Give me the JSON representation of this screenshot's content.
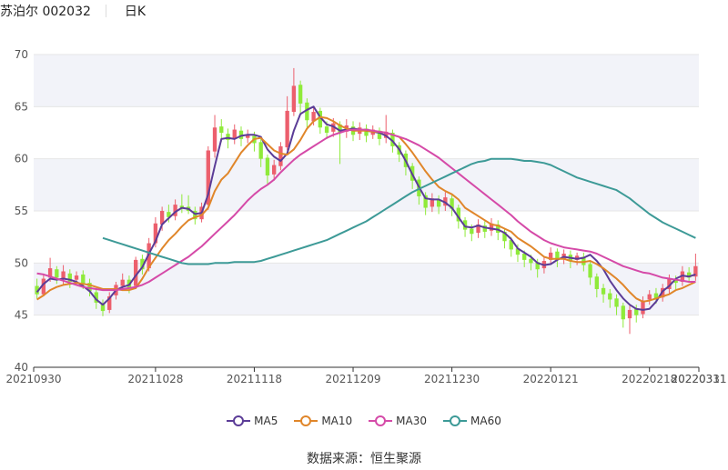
{
  "header": {
    "stock_name": "苏泊尔 002032",
    "period": "日K"
  },
  "footer": {
    "source_label": "数据来源：",
    "source_name": "恒生聚源"
  },
  "colors": {
    "up": "#ec5f6d",
    "down": "#8fea3a",
    "ma5": "#5b3c97",
    "ma10": "#e0862a",
    "ma30": "#d54aa8",
    "ma60": "#3d9a97",
    "band": "#f2f3f9",
    "grid": "#e6e6e6"
  },
  "chart_data": {
    "type": "candlestick",
    "ylim": [
      40,
      70
    ],
    "yticks": [
      40,
      45,
      50,
      55,
      60,
      65,
      70
    ],
    "x_tick_labels": [
      "20210930",
      "20211028",
      "20211118",
      "20211209",
      "20211230",
      "20220121",
      "20220218",
      "20220311",
      "20220331"
    ],
    "x_tick_positions": [
      0,
      18,
      33,
      48,
      63,
      78,
      93,
      108,
      120
    ],
    "bands": true,
    "series": [
      {
        "name": "MA5",
        "key": "ma5",
        "values": [
          47.2,
          48.0,
          48.5,
          48.4,
          48.5,
          48.4,
          48.2,
          47.8,
          47.3,
          46.5,
          46.0,
          46.6,
          47.4,
          47.7,
          47.9,
          48.8,
          49.6,
          50.9,
          52.1,
          53.7,
          54.3,
          54.9,
          55.3,
          55.2,
          54.7,
          54.8,
          56.6,
          59.3,
          61.9,
          62.0,
          61.9,
          62.2,
          62.3,
          62.3,
          62.1,
          60.9,
          60.2,
          59.8,
          60.5,
          62.7,
          64.3,
          64.7,
          65.0,
          64.0,
          63.3,
          63.1,
          62.7,
          62.8,
          62.9,
          62.8,
          62.7,
          62.6,
          62.5,
          62.2,
          61.7,
          60.9,
          59.8,
          58.5,
          57.3,
          56.2,
          56.1,
          56.1,
          55.8,
          55.3,
          54.4,
          53.5,
          53.4,
          53.6,
          53.4,
          53.3,
          53.2,
          52.9,
          52.3,
          51.4,
          51.0,
          50.6,
          50.0,
          49.8,
          49.9,
          50.3,
          50.6,
          50.5,
          50.4,
          50.5,
          50.8,
          50.2,
          49.4,
          48.3,
          47.4,
          46.6,
          46.0,
          45.6,
          45.5,
          45.6,
          46.3,
          47.3,
          47.8,
          48.5,
          48.8,
          48.7,
          48.9
        ]
      },
      {
        "name": "MA10",
        "key": "ma10",
        "values": [
          46.5,
          46.9,
          47.4,
          47.7,
          47.9,
          48.0,
          48.1,
          48.0,
          47.9,
          47.7,
          47.5,
          47.5,
          47.5,
          47.4,
          47.4,
          47.6,
          48.5,
          49.6,
          50.5,
          51.4,
          52.2,
          52.8,
          53.5,
          54.1,
          54.4,
          54.6,
          55.3,
          56.9,
          58.0,
          58.6,
          59.6,
          60.6,
          61.3,
          61.9,
          62.0,
          61.4,
          60.8,
          60.5,
          60.4,
          60.9,
          61.8,
          62.9,
          63.6,
          64.0,
          63.9,
          63.6,
          63.2,
          62.9,
          62.7,
          62.7,
          62.7,
          62.6,
          62.6,
          62.5,
          62.3,
          62.1,
          61.4,
          60.6,
          59.7,
          58.8,
          58.0,
          57.3,
          56.9,
          56.6,
          56.1,
          55.3,
          54.9,
          54.5,
          54.1,
          53.7,
          53.6,
          53.3,
          53.0,
          52.4,
          52.0,
          51.6,
          51.1,
          50.6,
          50.4,
          50.4,
          50.4,
          50.2,
          50.1,
          50.1,
          50.2,
          49.9,
          49.5,
          49.0,
          48.5,
          47.9,
          47.2,
          46.6,
          46.3,
          46.4,
          46.6,
          46.8,
          47.0,
          47.4,
          47.6,
          47.9,
          48.2
        ]
      },
      {
        "name": "MA30",
        "key": "ma30",
        "values": [
          49.0,
          48.9,
          48.7,
          48.5,
          48.3,
          48.1,
          47.9,
          47.7,
          47.6,
          47.5,
          47.4,
          47.4,
          47.4,
          47.5,
          47.6,
          47.7,
          47.9,
          48.2,
          48.6,
          49.0,
          49.4,
          49.8,
          50.2,
          50.6,
          51.1,
          51.6,
          52.2,
          52.8,
          53.4,
          54.0,
          54.6,
          55.3,
          56.0,
          56.6,
          57.1,
          57.5,
          58.0,
          58.7,
          59.3,
          59.9,
          60.4,
          60.8,
          61.2,
          61.6,
          62.0,
          62.3,
          62.5,
          62.7,
          62.8,
          62.8,
          62.8,
          62.7,
          62.6,
          62.5,
          62.3,
          62.1,
          61.9,
          61.6,
          61.3,
          60.9,
          60.5,
          60.1,
          59.6,
          59.1,
          58.6,
          58.1,
          57.6,
          57.1,
          56.6,
          56.1,
          55.6,
          55.1,
          54.6,
          54.0,
          53.5,
          53.0,
          52.6,
          52.2,
          51.9,
          51.7,
          51.5,
          51.4,
          51.3,
          51.2,
          51.1,
          50.9,
          50.6,
          50.3,
          50.0,
          49.7,
          49.5,
          49.3,
          49.1,
          49.0,
          48.8,
          48.6,
          48.5,
          48.4,
          48.3,
          48.2,
          48.2
        ]
      },
      {
        "name": "MA60",
        "key": "ma60",
        "values": [
          52.4,
          52.2,
          52.0,
          51.8,
          51.6,
          51.4,
          51.2,
          51.0,
          50.8,
          50.6,
          50.4,
          50.2,
          50.0,
          49.9,
          49.9,
          49.9,
          49.9,
          50.0,
          50.0,
          50.0,
          50.1,
          50.1,
          50.1,
          50.1,
          50.2,
          50.4,
          50.6,
          50.8,
          51.0,
          51.2,
          51.4,
          51.6,
          51.8,
          52.0,
          52.2,
          52.5,
          52.8,
          53.1,
          53.4,
          53.7,
          54.0,
          54.4,
          54.8,
          55.2,
          55.6,
          56.0,
          56.4,
          56.8,
          57.1,
          57.4,
          57.7,
          58.0,
          58.3,
          58.6,
          58.9,
          59.2,
          59.5,
          59.7,
          59.8,
          60.0,
          60.0,
          60.0,
          60.0,
          59.9,
          59.8,
          59.8,
          59.7,
          59.6,
          59.4,
          59.1,
          58.8,
          58.5,
          58.2,
          58.0,
          57.8,
          57.6,
          57.4,
          57.2,
          57.0,
          56.6,
          56.2,
          55.7,
          55.2,
          54.7,
          54.3,
          53.9,
          53.6,
          53.3,
          53.0,
          52.7,
          52.4
        ]
      }
    ],
    "candles": [
      [
        47.8,
        47.0,
        48.5,
        46.6
      ],
      [
        47.0,
        48.5,
        48.9,
        46.8
      ],
      [
        48.6,
        49.5,
        50.5,
        48.2
      ],
      [
        49.4,
        48.6,
        49.7,
        48.0
      ],
      [
        48.5,
        49.2,
        49.8,
        47.9
      ],
      [
        49.0,
        48.2,
        49.4,
        47.6
      ],
      [
        48.4,
        48.8,
        49.2,
        47.9
      ],
      [
        48.9,
        48.0,
        49.3,
        47.5
      ],
      [
        48.1,
        47.3,
        48.5,
        46.8
      ],
      [
        47.2,
        46.2,
        47.6,
        45.6
      ],
      [
        46.1,
        45.4,
        46.5,
        44.9
      ],
      [
        45.5,
        46.8,
        47.2,
        45.2
      ],
      [
        46.9,
        47.9,
        48.2,
        46.5
      ],
      [
        47.8,
        48.4,
        49.0,
        47.4
      ],
      [
        48.4,
        47.6,
        48.8,
        47.1
      ],
      [
        47.8,
        50.3,
        50.6,
        47.5
      ],
      [
        50.4,
        49.4,
        50.8,
        48.9
      ],
      [
        49.5,
        51.9,
        52.4,
        49.2
      ],
      [
        51.9,
        53.8,
        54.4,
        51.5
      ],
      [
        53.7,
        55.0,
        55.4,
        53.1
      ],
      [
        54.9,
        54.4,
        55.6,
        53.9
      ],
      [
        54.5,
        55.6,
        56.1,
        54.1
      ],
      [
        55.5,
        55.3,
        56.6,
        54.8
      ],
      [
        55.4,
        55.0,
        56.5,
        54.7
      ],
      [
        55.0,
        54.2,
        55.4,
        53.7
      ],
      [
        54.2,
        55.4,
        55.8,
        53.9
      ],
      [
        55.6,
        60.8,
        61.2,
        55.1
      ],
      [
        60.7,
        63.0,
        64.2,
        60.1
      ],
      [
        63.1,
        62.5,
        63.8,
        61.6
      ],
      [
        62.4,
        61.8,
        62.9,
        61.0
      ],
      [
        61.9,
        62.8,
        63.3,
        61.4
      ],
      [
        62.7,
        61.9,
        63.1,
        61.2
      ],
      [
        62.0,
        62.3,
        62.8,
        61.5
      ],
      [
        62.2,
        61.5,
        62.6,
        60.7
      ],
      [
        61.6,
        60.0,
        61.9,
        59.2
      ],
      [
        60.1,
        58.4,
        60.4,
        57.6
      ],
      [
        58.5,
        59.4,
        59.9,
        57.9
      ],
      [
        59.3,
        61.2,
        61.6,
        58.9
      ],
      [
        61.1,
        64.6,
        66.0,
        60.8
      ],
      [
        64.5,
        67.0,
        68.7,
        64.1
      ],
      [
        67.1,
        65.3,
        67.5,
        64.4
      ],
      [
        65.4,
        63.7,
        65.8,
        63.0
      ],
      [
        63.6,
        64.5,
        65.0,
        63.2
      ],
      [
        64.6,
        63.0,
        64.9,
        62.4
      ],
      [
        63.1,
        62.5,
        63.6,
        61.9
      ],
      [
        62.6,
        63.4,
        63.9,
        62.1
      ],
      [
        63.3,
        62.5,
        63.6,
        59.5
      ],
      [
        62.6,
        63.2,
        63.8,
        62.0
      ],
      [
        63.1,
        62.3,
        63.6,
        61.7
      ],
      [
        62.4,
        63.0,
        63.5,
        61.8
      ],
      [
        62.9,
        62.2,
        63.3,
        61.6
      ],
      [
        62.3,
        62.8,
        63.2,
        61.9
      ],
      [
        62.7,
        61.9,
        63.0,
        61.3
      ],
      [
        62.0,
        62.6,
        64.2,
        61.5
      ],
      [
        62.5,
        61.2,
        62.8,
        60.6
      ],
      [
        61.3,
        60.4,
        61.6,
        59.7
      ],
      [
        60.5,
        59.2,
        60.8,
        58.4
      ],
      [
        59.3,
        57.9,
        59.6,
        57.1
      ],
      [
        58.0,
        56.4,
        58.3,
        55.6
      ],
      [
        56.5,
        55.3,
        56.8,
        54.6
      ],
      [
        55.4,
        56.2,
        56.7,
        54.9
      ],
      [
        56.1,
        55.4,
        56.5,
        54.7
      ],
      [
        55.5,
        56.3,
        56.8,
        55.0
      ],
      [
        56.2,
        55.2,
        56.6,
        54.5
      ],
      [
        55.3,
        54.0,
        55.6,
        53.3
      ],
      [
        54.1,
        53.2,
        54.4,
        52.5
      ],
      [
        53.3,
        52.8,
        53.7,
        52.1
      ],
      [
        52.9,
        53.7,
        54.2,
        52.4
      ],
      [
        53.6,
        53.0,
        54.0,
        52.4
      ],
      [
        53.1,
        53.8,
        54.3,
        52.6
      ],
      [
        53.7,
        52.9,
        54.1,
        52.2
      ],
      [
        53.0,
        52.1,
        53.3,
        51.4
      ],
      [
        52.2,
        51.3,
        52.5,
        50.6
      ],
      [
        51.4,
        50.8,
        51.8,
        50.1
      ],
      [
        50.9,
        50.3,
        51.2,
        49.6
      ],
      [
        50.4,
        50.0,
        50.8,
        49.3
      ],
      [
        50.1,
        49.4,
        50.4,
        48.6
      ],
      [
        49.5,
        50.2,
        50.6,
        49.0
      ],
      [
        50.3,
        51.0,
        51.5,
        49.9
      ],
      [
        51.1,
        50.3,
        51.4,
        49.6
      ],
      [
        50.4,
        50.9,
        51.3,
        49.9
      ],
      [
        50.8,
        50.2,
        51.2,
        49.5
      ],
      [
        50.3,
        50.7,
        51.0,
        49.8
      ],
      [
        50.6,
        49.8,
        51.0,
        49.2
      ],
      [
        49.9,
        48.6,
        50.2,
        47.9
      ],
      [
        48.7,
        47.5,
        49.0,
        46.7
      ],
      [
        47.6,
        47.0,
        48.0,
        46.2
      ],
      [
        47.1,
        46.5,
        47.5,
        45.7
      ],
      [
        46.6,
        45.8,
        47.0,
        45.0
      ],
      [
        45.9,
        44.6,
        46.2,
        43.8
      ],
      [
        44.7,
        45.5,
        45.9,
        43.2
      ],
      [
        45.6,
        45.0,
        46.0,
        44.3
      ],
      [
        45.1,
        46.4,
        46.8,
        44.7
      ],
      [
        46.5,
        47.0,
        47.4,
        46.0
      ],
      [
        47.1,
        46.6,
        47.6,
        46.1
      ],
      [
        46.7,
        47.6,
        48.0,
        46.3
      ],
      [
        47.5,
        48.5,
        48.9,
        47.1
      ],
      [
        48.4,
        48.1,
        48.8,
        47.5
      ],
      [
        48.2,
        49.2,
        49.7,
        47.8
      ],
      [
        49.1,
        48.6,
        49.6,
        48.1
      ],
      [
        48.7,
        49.7,
        50.9,
        48.3
      ]
    ]
  }
}
